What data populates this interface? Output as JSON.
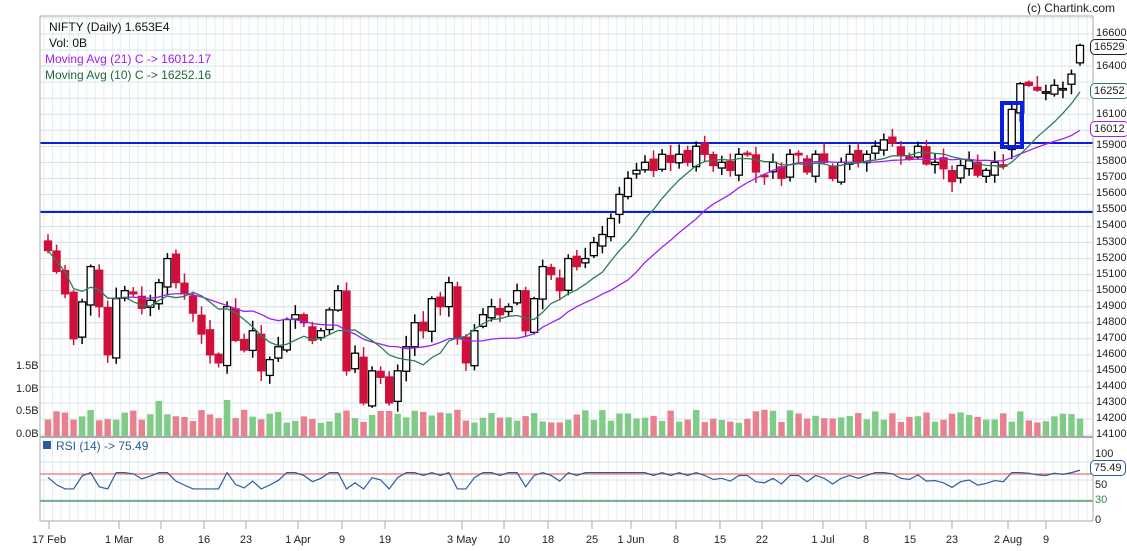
{
  "header": {
    "credit": "(c) Chartink.com",
    "title": "NIFTY (Daily) 1.653E4",
    "volume": "Vol: 0B",
    "ma21_label": "Moving Avg (21) C -> 16012.17",
    "ma10_label": "Moving Avg (10) C -> 16252.16"
  },
  "rsi": {
    "legend": "RSI (14) -> 75.49",
    "axis": [
      "100",
      "50",
      "30",
      "0"
    ],
    "value_tag": "75.49"
  },
  "price_axis": [
    "16600",
    "16400",
    "16100",
    "15900",
    "15800",
    "15700",
    "15600",
    "15500",
    "15400",
    "15300",
    "15200",
    "15100",
    "15000",
    "14900",
    "14800",
    "14700",
    "14600",
    "14500",
    "14400",
    "14300",
    "14200",
    "14100"
  ],
  "price_tags": {
    "last": "16529",
    "ma10": "16252",
    "ma21": "16012"
  },
  "volume_axis": [
    "1.5B",
    "1.0B",
    "0.5B",
    "0.0B"
  ],
  "x_axis": [
    "17 Feb",
    "1 Mar",
    "8",
    "16",
    "23",
    "1 Apr",
    "9",
    "19",
    "3 May",
    "10",
    "18",
    "25",
    "1 Jun",
    "8",
    "15",
    "22",
    "1 Jul",
    "8",
    "15",
    "23",
    "2 Aug",
    "9"
  ],
  "colors": {
    "up": "#ffffff",
    "down": "#d0103a",
    "ma21": "#a020f0",
    "ma10": "#2e7d4f",
    "hline": "#0a1ee0",
    "vol_up": "#7fcb87",
    "vol_down": "#e8808f",
    "rsi": "#2d5b9b",
    "rsi_70": "#f07070",
    "rsi_30": "#3a8a44"
  },
  "chart_data": {
    "type": "candlestick",
    "title": "NIFTY (Daily) 1.653E4",
    "xlabel": "",
    "ylabel": "",
    "ylim": [
      14100,
      16600
    ],
    "horizontal_lines": [
      15920,
      15500
    ],
    "highlight_box": {
      "date": "30 Jul / 2 Aug",
      "from": 15900,
      "to": 16180
    },
    "x_ticks": [
      "17 Feb",
      "1 Mar",
      "8",
      "16",
      "23",
      "1 Apr",
      "9",
      "19",
      "3 May",
      "10",
      "18",
      "25",
      "1 Jun",
      "8",
      "15",
      "22",
      "1 Jul",
      "8",
      "15",
      "23",
      "2 Aug",
      "9"
    ],
    "series": [
      {
        "name": "Close (approx)",
        "values": [
          15250,
          15120,
          14980,
          14700,
          14930,
          15150,
          14900,
          14600,
          14950,
          15000,
          14980,
          14890,
          14940,
          15050,
          15200,
          15050,
          14980,
          14860,
          14730,
          14600,
          14550,
          14900,
          14690,
          14630,
          14750,
          14500,
          14570,
          14650,
          14820,
          14850,
          14800,
          14690,
          14750,
          14880,
          15000,
          14500,
          14610,
          14300,
          14500,
          14460,
          14300,
          14500,
          14650,
          14800,
          14750,
          14950,
          14900,
          15050,
          14700,
          14550,
          14750,
          14850,
          14900,
          14850,
          14900,
          15000,
          14750,
          14950,
          15150,
          15100,
          15000,
          15200,
          15150,
          15200,
          15300,
          15350,
          15450,
          15600,
          15700,
          15750,
          15800,
          15750,
          15850,
          15800,
          15850,
          15800,
          15900,
          15850,
          15780,
          15800,
          15750,
          15850,
          15850,
          15740,
          15720,
          15800,
          15700,
          15850,
          15850,
          15740,
          15850,
          15800,
          15700,
          15800,
          15850,
          15800,
          15850,
          15900,
          15940,
          15920,
          15840,
          15820,
          15900,
          15790,
          15800,
          15760,
          15680,
          15780,
          15810,
          15720,
          15750,
          15800,
          15780,
          16130,
          16290,
          16280,
          16250,
          16240,
          16280,
          16260,
          16350,
          16529
        ]
      },
      {
        "name": "Moving Avg (10) C",
        "last": 16252.16
      },
      {
        "name": "Moving Avg (21) C",
        "last": 16012.17
      }
    ],
    "volume": {
      "ylim": [
        0,
        1.7
      ],
      "unit": "B"
    },
    "rsi": {
      "period": 14,
      "last": 75.49,
      "levels": [
        70,
        30
      ],
      "ylim": [
        0,
        100
      ]
    }
  }
}
